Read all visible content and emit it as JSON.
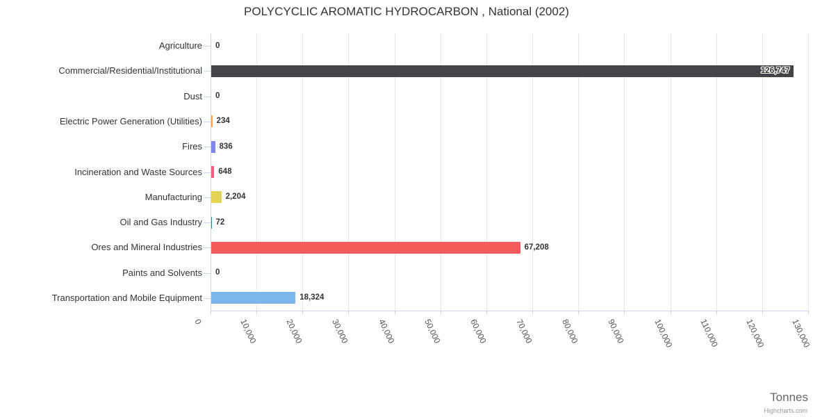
{
  "credits": "Highcharts.com",
  "chart_data": {
    "type": "bar",
    "orientation": "horizontal",
    "title": "POLYCYCLIC AROMATIC HYDROCARBON , National (2002)",
    "xlabel": "Tonnes",
    "ylabel": "",
    "xlim": [
      0,
      130000
    ],
    "grid": true,
    "legend": false,
    "categories": [
      "Agriculture",
      "Commercial/Residential/Institutional",
      "Dust",
      "Electric Power Generation (Utilities)",
      "Fires",
      "Incineration and Waste Sources",
      "Manufacturing",
      "Oil and Gas Industry",
      "Ores and Mineral Industries",
      "Paints and Solvents",
      "Transportation and Mobile Equipment"
    ],
    "values": [
      0,
      126747,
      0,
      234,
      836,
      648,
      2204,
      72,
      67208,
      0,
      18324
    ],
    "value_labels": [
      "0",
      "126,747",
      "0",
      "234",
      "836",
      "648",
      "2,204",
      "72",
      "67,208",
      "0",
      "18,324"
    ],
    "bar_colors": [
      "#7cb5ec",
      "#434348",
      "#90ed7d",
      "#f7a35c",
      "#8085e9",
      "#f15c80",
      "#e4d354",
      "#2b908f",
      "#f45b5b",
      "#91e8e1",
      "#7cb5ec"
    ],
    "xticks": [
      0,
      10000,
      20000,
      30000,
      40000,
      50000,
      60000,
      70000,
      80000,
      90000,
      100000,
      110000,
      120000,
      130000
    ],
    "xtick_labels": [
      "0",
      "10,000",
      "20,000",
      "30,000",
      "40,000",
      "50,000",
      "60,000",
      "70,000",
      "80,000",
      "90,000",
      "100,000",
      "110,000",
      "120,000",
      "130,000"
    ],
    "colors": {
      "axis_line": "#ccd6eb",
      "gridline": "#e6e6e6",
      "label_text": "#333333",
      "tick_text": "#555555",
      "axis_title_text": "#666666",
      "credits_text": "#999999"
    }
  }
}
